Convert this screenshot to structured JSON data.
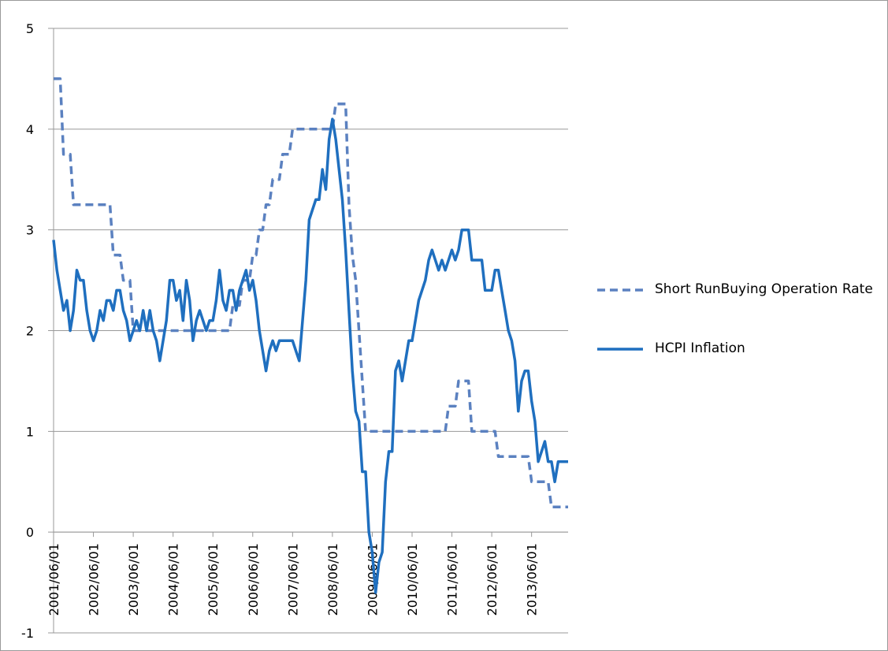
{
  "chart_data": {
    "type": "line",
    "categories": [
      "2001/06/01",
      null,
      null,
      null,
      null,
      null,
      null,
      null,
      null,
      null,
      null,
      null,
      "2002/06/01",
      null,
      null,
      null,
      null,
      null,
      null,
      null,
      null,
      null,
      null,
      null,
      "2003/06/01",
      null,
      null,
      null,
      null,
      null,
      null,
      null,
      null,
      null,
      null,
      null,
      "2004/06/01",
      null,
      null,
      null,
      null,
      null,
      null,
      null,
      null,
      null,
      null,
      null,
      "2005/06/01",
      null,
      null,
      null,
      null,
      null,
      null,
      null,
      null,
      null,
      null,
      null,
      "2006/06/01",
      null,
      null,
      null,
      null,
      null,
      null,
      null,
      null,
      null,
      null,
      null,
      "2007/06/01",
      null,
      null,
      null,
      null,
      null,
      null,
      null,
      null,
      null,
      null,
      null,
      "2008/06/01",
      null,
      null,
      null,
      null,
      null,
      null,
      null,
      null,
      null,
      null,
      null,
      "2009/06/01",
      null,
      null,
      null,
      null,
      null,
      null,
      null,
      null,
      null,
      null,
      null,
      "2010/06/01",
      null,
      null,
      null,
      null,
      null,
      null,
      null,
      null,
      null,
      null,
      null,
      "2011/06/01",
      null,
      null,
      null,
      null,
      null,
      null,
      null,
      null,
      null,
      null,
      null,
      "2012/06/01",
      null,
      null,
      null,
      null,
      null,
      null,
      null,
      null,
      null,
      null,
      null,
      "2013/06/01",
      null,
      null,
      null,
      null,
      null,
      null,
      null,
      null,
      null,
      null,
      null
    ],
    "series": [
      {
        "name": "Short RunBuying Operation Rate",
        "color": "#5b81c0",
        "dashed": true,
        "values": [
          4.5,
          4.5,
          4.5,
          3.75,
          3.75,
          3.75,
          3.25,
          3.25,
          3.25,
          3.25,
          3.25,
          3.25,
          3.25,
          3.25,
          3.25,
          3.25,
          3.25,
          3.25,
          2.75,
          2.75,
          2.75,
          2.5,
          2.5,
          2.5,
          2,
          2,
          2,
          2,
          2,
          2,
          2,
          2,
          2,
          2,
          2,
          2,
          2,
          2,
          2,
          2,
          2,
          2,
          2,
          2,
          2,
          2,
          2,
          2,
          2,
          2,
          2,
          2,
          2,
          2,
          2.25,
          2.25,
          2.25,
          2.5,
          2.5,
          2.5,
          2.75,
          2.75,
          3,
          3,
          3.25,
          3.25,
          3.5,
          3.5,
          3.5,
          3.75,
          3.75,
          3.75,
          4,
          4,
          4,
          4,
          4,
          4,
          4,
          4,
          4,
          4,
          4,
          4,
          4,
          4.25,
          4.25,
          4.25,
          4.25,
          3.25,
          2.75,
          2.5,
          2,
          1.5,
          1,
          1,
          1,
          1,
          1,
          1,
          1,
          1,
          1,
          1,
          1,
          1,
          1,
          1,
          1,
          1,
          1,
          1,
          1,
          1,
          1,
          1,
          1,
          1,
          1,
          1.25,
          1.25,
          1.25,
          1.5,
          1.5,
          1.5,
          1.5,
          1,
          1,
          1,
          1,
          1,
          1,
          1,
          1,
          0.75,
          0.75,
          0.75,
          0.75,
          0.75,
          0.75,
          0.75,
          0.75,
          0.75,
          0.75,
          0.5,
          0.5,
          0.5,
          0.5,
          0.5,
          0.5,
          0.25,
          0.25,
          0.25,
          0.25,
          0.25,
          0.25
        ]
      },
      {
        "name": "HCPI Inflation",
        "color": "#1f6fbf",
        "dashed": false,
        "values": [
          2.9,
          2.6,
          2.4,
          2.2,
          2.3,
          2.0,
          2.2,
          2.6,
          2.5,
          2.5,
          2.2,
          2.0,
          1.9,
          2.0,
          2.2,
          2.1,
          2.3,
          2.3,
          2.2,
          2.4,
          2.4,
          2.2,
          2.1,
          1.9,
          2.0,
          2.1,
          2.0,
          2.2,
          2.0,
          2.2,
          2.0,
          1.9,
          1.7,
          1.9,
          2.1,
          2.5,
          2.5,
          2.3,
          2.4,
          2.1,
          2.5,
          2.3,
          1.9,
          2.1,
          2.2,
          2.1,
          2.0,
          2.1,
          2.1,
          2.3,
          2.6,
          2.3,
          2.2,
          2.4,
          2.4,
          2.2,
          2.4,
          2.5,
          2.6,
          2.4,
          2.5,
          2.3,
          2.0,
          1.8,
          1.6,
          1.8,
          1.9,
          1.8,
          1.9,
          1.9,
          1.9,
          1.9,
          1.9,
          1.8,
          1.7,
          2.1,
          2.5,
          3.1,
          3.2,
          3.3,
          3.3,
          3.6,
          3.4,
          3.9,
          4.1,
          3.9,
          3.6,
          3.3,
          2.8,
          2.2,
          1.6,
          1.2,
          1.1,
          0.6,
          0.6,
          0.0,
          -0.2,
          -0.6,
          -0.3,
          -0.2,
          0.5,
          0.8,
          0.8,
          1.6,
          1.7,
          1.5,
          1.7,
          1.9,
          1.9,
          2.1,
          2.3,
          2.4,
          2.5,
          2.7,
          2.8,
          2.7,
          2.6,
          2.7,
          2.6,
          2.7,
          2.8,
          2.7,
          2.8,
          3.0,
          3.0,
          3.0,
          2.7,
          2.7,
          2.7,
          2.7,
          2.4,
          2.4,
          2.4,
          2.6,
          2.6,
          2.4,
          2.2,
          2.0,
          1.9,
          1.7,
          1.2,
          1.5,
          1.6,
          1.6,
          1.3,
          1.1,
          0.7,
          0.8,
          0.9,
          0.7,
          0.7,
          0.5,
          0.7,
          0.7,
          0.7,
          0.7
        ]
      }
    ],
    "ylim": [
      -1,
      5
    ],
    "yticks": [
      -1,
      0,
      1,
      2,
      3,
      4,
      5
    ],
    "grid": true,
    "legend": "right"
  }
}
